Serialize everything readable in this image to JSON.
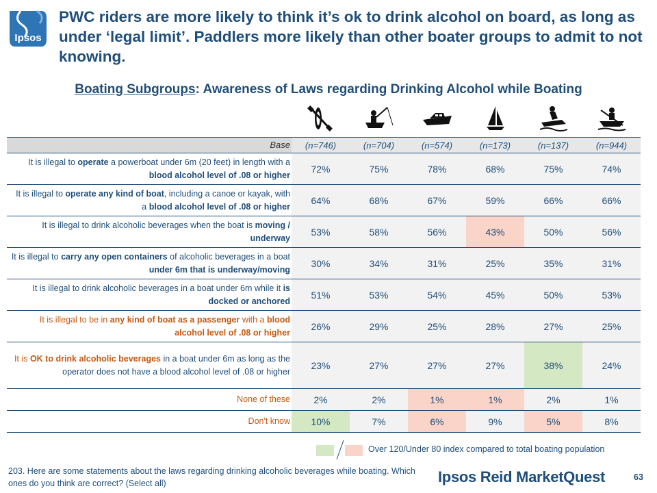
{
  "logo_text": "Ipsos",
  "title": "PWC riders are more likely to think it’s ok to drink alcohol on board, as long as under ‘legal limit’. Paddlers more likely than other boater groups to admit to not knowing.",
  "subtitle_underlined": "Boating Subgroups",
  "subtitle_rest": ": Awareness of Laws regarding Drinking Alcohol while Boating",
  "chart_data": {
    "type": "table",
    "group_icons": [
      "kayak-paddle-icon",
      "fishing-boat-icon",
      "powerboat-icon",
      "sailboat-icon",
      "pwc-rider-icon",
      "rowboat-icon"
    ],
    "base_label": "Base",
    "bases": [
      "(n=746)",
      "(n=704)",
      "(n=574)",
      "(n=173)",
      "(n=137)",
      "(n=944)"
    ],
    "rows": [
      {
        "label_parts": [
          {
            "t": "It is illegal to ",
            "s": "n"
          },
          {
            "t": "operate",
            "s": "b"
          },
          {
            "t": " a powerboat under 6m (20 feet) in length with a ",
            "s": "n"
          },
          {
            "t": "blood alcohol level of .08 or higher",
            "s": "b"
          }
        ],
        "values": [
          "72%",
          "75%",
          "78%",
          "68%",
          "75%",
          "74%"
        ],
        "flags": [
          "",
          "",
          "",
          "",
          "",
          ""
        ]
      },
      {
        "label_parts": [
          {
            "t": "It is illegal to ",
            "s": "n"
          },
          {
            "t": "operate any kind of boat",
            "s": "b"
          },
          {
            "t": ", including a canoe or kayak, with a ",
            "s": "n"
          },
          {
            "t": "blood alcohol level of .08 or higher",
            "s": "b"
          }
        ],
        "values": [
          "64%",
          "68%",
          "67%",
          "59%",
          "66%",
          "66%"
        ],
        "flags": [
          "",
          "",
          "",
          "",
          "",
          ""
        ]
      },
      {
        "label_parts": [
          {
            "t": "It is illegal to drink alcoholic beverages when the boat is ",
            "s": "n"
          },
          {
            "t": "moving / underway",
            "s": "b"
          }
        ],
        "values": [
          "53%",
          "58%",
          "56%",
          "43%",
          "50%",
          "56%"
        ],
        "flags": [
          "",
          "",
          "",
          "lo",
          "",
          ""
        ]
      },
      {
        "label_parts": [
          {
            "t": "It is illegal to ",
            "s": "n"
          },
          {
            "t": "carry any open containers",
            "s": "b"
          },
          {
            "t": " of alcoholic beverages in a boat ",
            "s": "n"
          },
          {
            "t": "under 6m that is underway/moving",
            "s": "b"
          }
        ],
        "values": [
          "30%",
          "34%",
          "31%",
          "25%",
          "35%",
          "31%"
        ],
        "flags": [
          "",
          "",
          "",
          "",
          "",
          ""
        ]
      },
      {
        "label_parts": [
          {
            "t": "It is illegal to drink alcoholic beverages in a boat under 6m while it ",
            "s": "n"
          },
          {
            "t": "is docked or anchored",
            "s": "b"
          }
        ],
        "values": [
          "51%",
          "53%",
          "54%",
          "45%",
          "50%",
          "53%"
        ],
        "flags": [
          "",
          "",
          "",
          "",
          "",
          ""
        ]
      },
      {
        "label_parts": [
          {
            "t": "It is illegal to be in ",
            "s": "h"
          },
          {
            "t": "any kind of boat as a passenger",
            "s": "hb"
          },
          {
            "t": " with a ",
            "s": "h"
          },
          {
            "t": "blood alcohol level of .08 or higher",
            "s": "hb"
          }
        ],
        "values": [
          "26%",
          "29%",
          "25%",
          "28%",
          "27%",
          "25%"
        ],
        "flags": [
          "",
          "",
          "",
          "",
          "",
          ""
        ]
      },
      {
        "label_parts": [
          {
            "t": "It is ",
            "s": "h"
          },
          {
            "t": "OK to drink alcoholic beverages",
            "s": "hb"
          },
          {
            "t": " in a boat under 6m as long as the operator does not have a blood alcohol level of .08 or higher",
            "s": "n"
          }
        ],
        "values": [
          "23%",
          "27%",
          "27%",
          "27%",
          "38%",
          "24%"
        ],
        "flags": [
          "",
          "",
          "",
          "",
          "hi",
          ""
        ]
      },
      {
        "label_parts": [
          {
            "t": "None of these",
            "s": "h"
          }
        ],
        "values": [
          "2%",
          "2%",
          "1%",
          "1%",
          "2%",
          "1%"
        ],
        "flags": [
          "",
          "",
          "lo",
          "lo",
          "",
          ""
        ]
      },
      {
        "label_parts": [
          {
            "t": "Don't know",
            "s": "h"
          }
        ],
        "values": [
          "10%",
          "7%",
          "6%",
          "9%",
          "5%",
          "8%"
        ],
        "flags": [
          "hi",
          "",
          "lo",
          "",
          "lo",
          ""
        ]
      }
    ]
  },
  "legend": {
    "text": "Over 120/Under 80 index compared to total boating population",
    "over_color": "#d5e8c4",
    "under_color": "#fad4c8"
  },
  "footnote": "203. Here are some statements about the laws regarding drinking alcoholic beverages while boating. Which ones do you think are correct? (Select all)",
  "brand": "Ipsos Reid MarketQuest",
  "page_number": "63"
}
